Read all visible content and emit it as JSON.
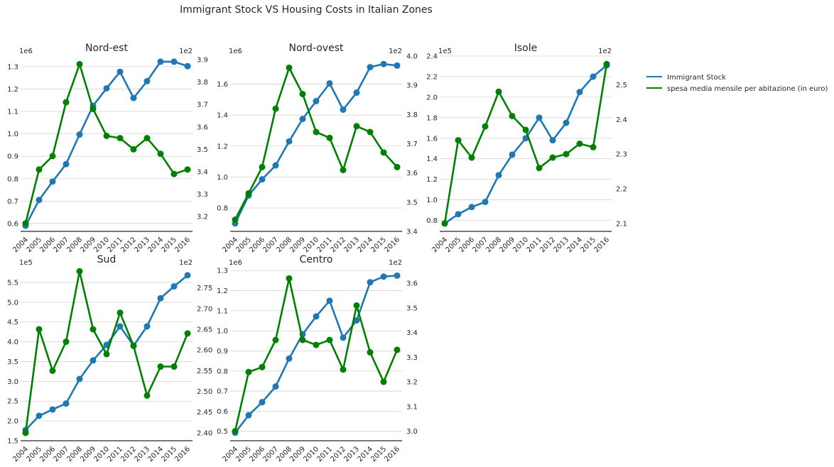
{
  "figure_title": "Immigrant Stock VS Housing Costs in Italian Zones",
  "legend": {
    "placement": "right, outside plots (top)",
    "entries": [
      {
        "label": "Immigrant Stock",
        "color": "#1f77b4"
      },
      {
        "label": "spesa media mensile per abitazione (in euro)",
        "color": "#008000"
      }
    ]
  },
  "chart_data": [
    {
      "type": "line",
      "title": "Nord-est",
      "x": [
        "2004",
        "2005",
        "2006",
        "2007",
        "2008",
        "2009",
        "2010",
        "2011",
        "2012",
        "2013",
        "2014",
        "2015",
        "2016"
      ],
      "series": [
        {
          "name": "Immigrant Stock",
          "axis": "left",
          "color": "#1f77b4",
          "values": [
            590000,
            705000,
            787000,
            865000,
            997000,
            1125000,
            1203000,
            1277000,
            1160000,
            1235000,
            1322000,
            1322000,
            1302000
          ]
        },
        {
          "name": "spesa media mensile per abitazione (in euro)",
          "axis": "right",
          "color": "#008000",
          "values": [
            317,
            341,
            347,
            371,
            388,
            368,
            356,
            355,
            350,
            355,
            348,
            339,
            341
          ]
        }
      ],
      "y_left": {
        "scale_label": "1e6",
        "ticks": [
          "0.6",
          "0.7",
          "0.8",
          "0.9",
          "1.0",
          "1.1",
          "1.2",
          "1.3"
        ],
        "tick_values": [
          600000,
          700000,
          800000,
          900000,
          1000000,
          1100000,
          1200000,
          1300000
        ],
        "lim": [
          565000,
          1347000
        ]
      },
      "y_right": {
        "scale_label": "1e2",
        "ticks": [
          "3.2",
          "3.3",
          "3.4",
          "3.5",
          "3.6",
          "3.7",
          "3.8",
          "3.9"
        ],
        "tick_values": [
          320,
          330,
          340,
          350,
          360,
          370,
          380,
          390
        ],
        "lim": [
          313.4,
          391.6
        ]
      },
      "grid": "horizontal (left axis)"
    },
    {
      "type": "line",
      "title": "Nord-ovest",
      "x": [
        "2004",
        "2005",
        "2006",
        "2007",
        "2008",
        "2009",
        "2010",
        "2011",
        "2012",
        "2013",
        "2014",
        "2015",
        "2016"
      ],
      "series": [
        {
          "name": "Immigrant Stock",
          "axis": "left",
          "color": "#1f77b4",
          "values": [
            700000,
            880000,
            985000,
            1075000,
            1230000,
            1375000,
            1490000,
            1605000,
            1435000,
            1545000,
            1710000,
            1730000,
            1720000
          ]
        },
        {
          "name": "spesa media mensile per abitazione (in euro)",
          "axis": "right",
          "color": "#008000",
          "values": [
            344,
            353,
            362,
            382,
            396,
            387,
            374,
            372,
            361,
            376,
            374,
            367,
            362
          ]
        }
      ],
      "y_left": {
        "scale_label": "1e6",
        "ticks": [
          "0.8",
          "1.0",
          "1.2",
          "1.4",
          "1.6"
        ],
        "tick_values": [
          800000,
          1000000,
          1200000,
          1400000,
          1600000
        ],
        "lim": [
          648500,
          1781500
        ]
      },
      "y_right": {
        "scale_label": "1e2",
        "ticks": [
          "3.4",
          "3.5",
          "3.6",
          "3.7",
          "3.8",
          "3.9",
          "4.0"
        ],
        "tick_values": [
          340,
          350,
          360,
          370,
          380,
          390,
          400
        ],
        "lim": [
          340,
          400
        ]
      },
      "grid": "horizontal (left axis)"
    },
    {
      "type": "line",
      "title": "Isole",
      "x": [
        "2004",
        "2005",
        "2006",
        "2007",
        "2008",
        "2009",
        "2010",
        "2011",
        "2012",
        "2013",
        "2014",
        "2015",
        "2016"
      ],
      "series": [
        {
          "name": "Immigrant Stock",
          "axis": "left",
          "color": "#1f77b4",
          "values": [
            77000,
            86000,
            93000,
            98000,
            124000,
            144000,
            160000,
            180000,
            158000,
            175000,
            205000,
            220000,
            231000
          ]
        },
        {
          "name": "spesa media mensile per abitazione (in euro)",
          "axis": "right",
          "color": "#008000",
          "values": [
            210,
            234,
            229,
            238,
            248,
            241,
            237,
            226,
            229,
            230,
            233,
            232,
            256
          ]
        }
      ],
      "y_left": {
        "scale_label": "1e5",
        "ticks": [
          "0.8",
          "1.0",
          "1.2",
          "1.4",
          "1.6",
          "1.8",
          "2.0",
          "2.2",
          "2.4"
        ],
        "tick_values": [
          80000,
          100000,
          120000,
          140000,
          160000,
          180000,
          200000,
          220000,
          240000
        ],
        "lim": [
          69300,
          240000
        ]
      },
      "y_right": {
        "scale_label": "1e2",
        "ticks": [
          "2.1",
          "2.2",
          "2.3",
          "2.4",
          "2.5"
        ],
        "tick_values": [
          210,
          220,
          230,
          240,
          250
        ],
        "lim": [
          207.7,
          258.3
        ]
      },
      "grid": "horizontal (left axis)"
    },
    {
      "type": "line",
      "title": "Sud",
      "x": [
        "2004",
        "2005",
        "2006",
        "2007",
        "2008",
        "2009",
        "2010",
        "2011",
        "2012",
        "2013",
        "2014",
        "2015",
        "2016"
      ],
      "series": [
        {
          "name": "Immigrant Stock",
          "axis": "left",
          "color": "#1f77b4",
          "values": [
            177000,
            213000,
            229000,
            244000,
            306000,
            353000,
            392000,
            439000,
            390000,
            439000,
            510000,
            540000,
            568000
          ]
        },
        {
          "name": "spesa media mensile per abitazione (in euro)",
          "axis": "right",
          "color": "#008000",
          "values": [
            240,
            265,
            255,
            262,
            279,
            265,
            259,
            269,
            261,
            249,
            256,
            256,
            264
          ]
        }
      ],
      "y_left": {
        "scale_label": "1e5",
        "ticks": [
          "1.5",
          "2.0",
          "2.5",
          "3.0",
          "3.5",
          "4.0",
          "4.5",
          "5.0",
          "5.5"
        ],
        "tick_values": [
          150000,
          200000,
          250000,
          300000,
          350000,
          400000,
          450000,
          500000,
          550000
        ],
        "lim": [
          150000,
          587500
        ]
      },
      "y_right": {
        "scale_label": "1e2",
        "ticks": [
          "2.40",
          "2.45",
          "2.50",
          "2.55",
          "2.60",
          "2.65",
          "2.70",
          "2.75"
        ],
        "tick_values": [
          240,
          245,
          250,
          255,
          260,
          265,
          270,
          275
        ],
        "lim": [
          238.1,
          279.9
        ]
      },
      "grid": "horizontal (left axis)"
    },
    {
      "type": "line",
      "title": "Centro",
      "x": [
        "2004",
        "2005",
        "2006",
        "2007",
        "2008",
        "2009",
        "2010",
        "2011",
        "2012",
        "2013",
        "2014",
        "2015",
        "2016"
      ],
      "series": [
        {
          "name": "Immigrant Stock",
          "axis": "left",
          "color": "#1f77b4",
          "values": [
            493000,
            580000,
            645000,
            723000,
            862000,
            983000,
            1072000,
            1150000,
            966000,
            1052000,
            1242000,
            1270000,
            1275000
          ]
        },
        {
          "name": "spesa media mensile per abitazione (in euro)",
          "axis": "right",
          "color": "#008000",
          "values": [
            300,
            324,
            326,
            337,
            362,
            337,
            335,
            337,
            325,
            351,
            332,
            320,
            333
          ]
        }
      ],
      "y_left": {
        "scale_label": "1e6",
        "ticks": [
          "0.5",
          "0.6",
          "0.7",
          "0.8",
          "0.9",
          "1.0",
          "1.1",
          "1.2",
          "1.3"
        ],
        "tick_values": [
          500000,
          600000,
          700000,
          800000,
          900000,
          1000000,
          1100000,
          1200000,
          1300000
        ],
        "lim": [
          453000,
          1315000
        ]
      },
      "y_right": {
        "scale_label": "1e2",
        "ticks": [
          "3.0",
          "3.1",
          "3.2",
          "3.3",
          "3.4",
          "3.5",
          "3.6"
        ],
        "tick_values": [
          300,
          310,
          320,
          330,
          340,
          350,
          360
        ],
        "lim": [
          296.1,
          366.4
        ]
      },
      "grid": "horizontal (left axis)"
    }
  ]
}
